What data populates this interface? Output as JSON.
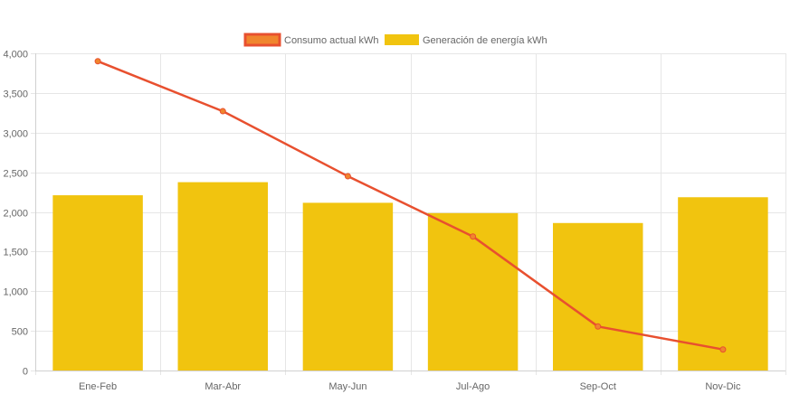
{
  "chart_data": {
    "type": "bar",
    "categories": [
      "Ene-Feb",
      "Mar-Abr",
      "May-Jun",
      "Jul-Ago",
      "Sep-Oct",
      "Nov-Dic"
    ],
    "series": [
      {
        "name": "Consumo actual kWh",
        "type": "line",
        "color": "#e8502f",
        "fill": "#f0852d",
        "values": [
          3900,
          3270,
          2450,
          1690,
          555,
          265
        ]
      },
      {
        "name": "Generación de energía kWh",
        "type": "bar",
        "color": "#f1c40f",
        "values": [
          2210,
          2375,
          2115,
          1985,
          1860,
          2185
        ]
      }
    ],
    "ylim": [
      0,
      4000
    ],
    "yticks": [
      0,
      500,
      1000,
      1500,
      2000,
      2500,
      3000,
      3500,
      4000
    ],
    "ytick_labels": [
      "0",
      "500",
      "1,000",
      "1,500",
      "2,000",
      "2,500",
      "3,000",
      "3,500",
      "4,000"
    ],
    "grid": true,
    "legend_position": "top-center"
  }
}
